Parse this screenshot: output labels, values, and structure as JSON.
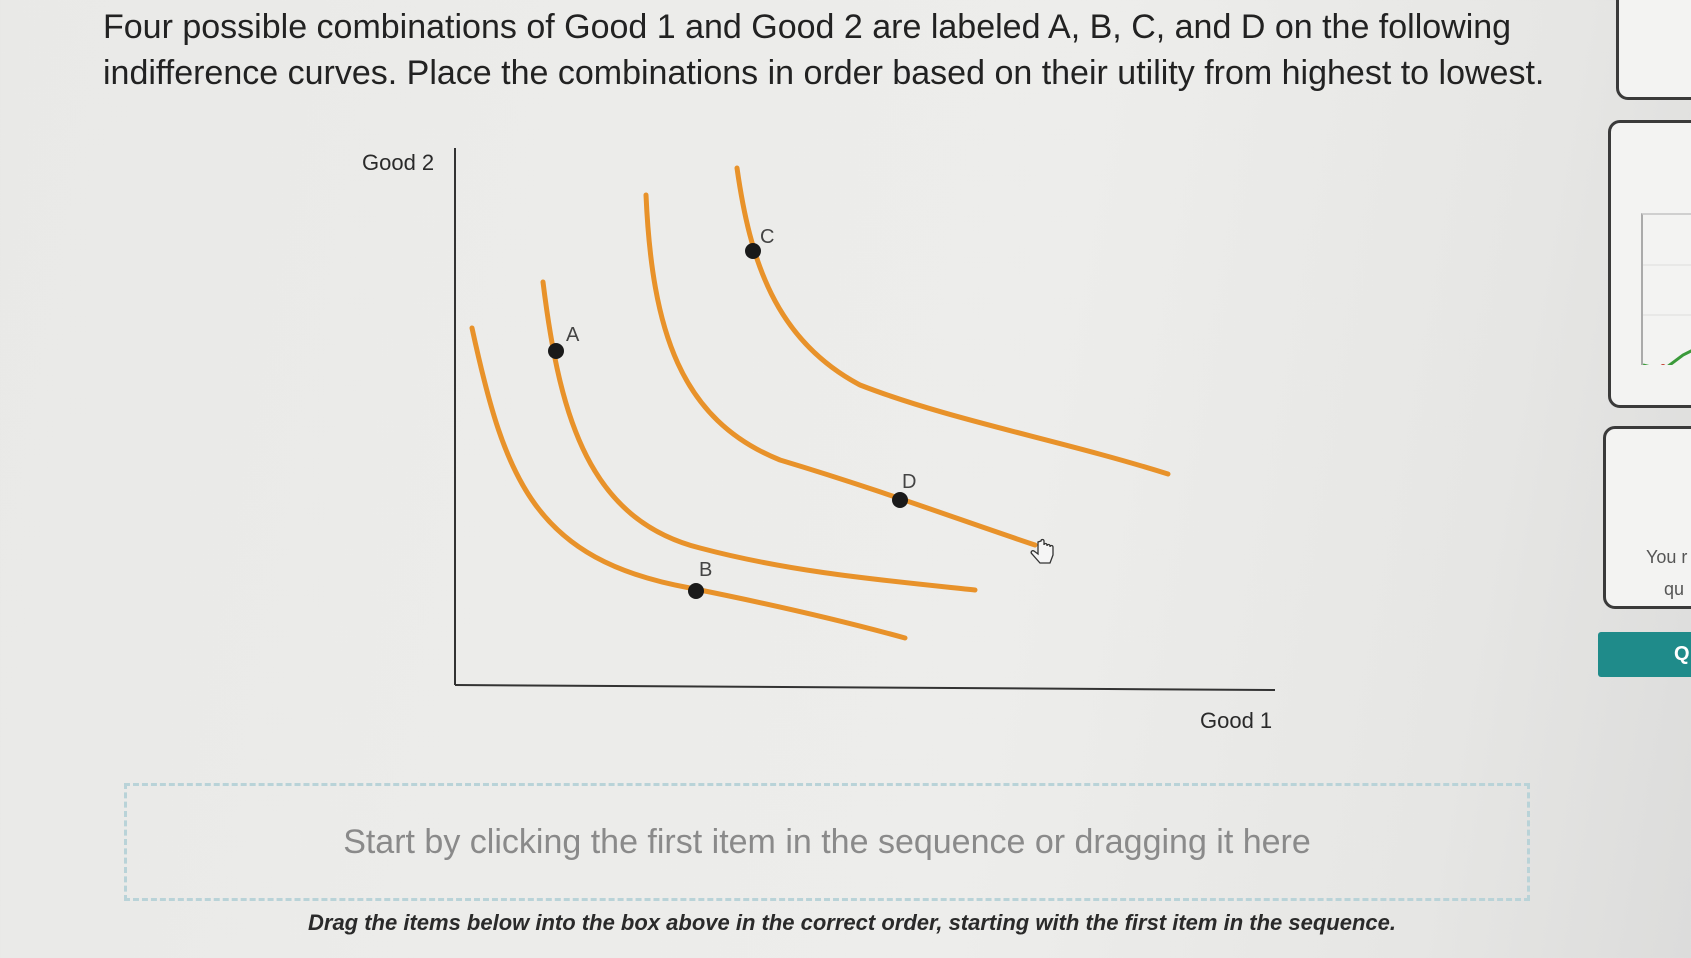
{
  "question": {
    "line1": "Four possible combinations of Good 1 and Good 2 are labeled A, B, C, and D on the following",
    "line2": "indifference curves. Place the combinations in order based on their utility from highest to lowest."
  },
  "graph": {
    "y_axis_label": "Good 2",
    "x_axis_label": "Good 1",
    "points": [
      {
        "label": "A"
      },
      {
        "label": "B"
      },
      {
        "label": "C"
      },
      {
        "label": "D"
      }
    ],
    "curve_color": "#e8922a",
    "point_color": "#1a1a1a"
  },
  "drop_zone": {
    "placeholder": "Start by clicking the first item in the sequence or dragging it here"
  },
  "instruction": "Drag the items below into the box above in the correct order, starting with the first item in the sequence.",
  "side_panel": {
    "card_text_line1": "You r",
    "card_text_line2": "qu",
    "button_label": "Q",
    "button_color": "#1f8b8a"
  }
}
